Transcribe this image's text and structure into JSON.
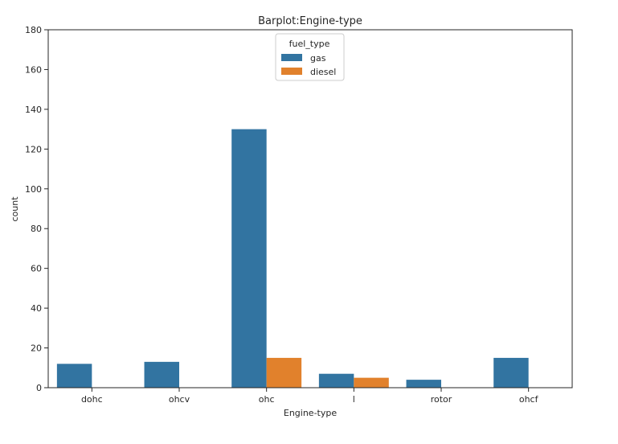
{
  "chart_data": {
    "type": "bar",
    "title": "Barplot:Engine-type",
    "xlabel": "Engine-type",
    "ylabel": "count",
    "ylim": [
      0,
      180
    ],
    "yticks": [
      0,
      20,
      40,
      60,
      80,
      100,
      120,
      140,
      160,
      180
    ],
    "categories": [
      "dohc",
      "ohcv",
      "ohc",
      "l",
      "rotor",
      "ohcf"
    ],
    "grid": false,
    "legend": {
      "title": "fuel_type",
      "placement": "top-center"
    },
    "series": [
      {
        "name": "gas",
        "color": "#3274a1",
        "values": [
          12,
          13,
          130,
          7,
          4,
          15
        ]
      },
      {
        "name": "diesel",
        "color": "#e1812c",
        "values": [
          0,
          0,
          15,
          5,
          0,
          0
        ]
      }
    ]
  }
}
